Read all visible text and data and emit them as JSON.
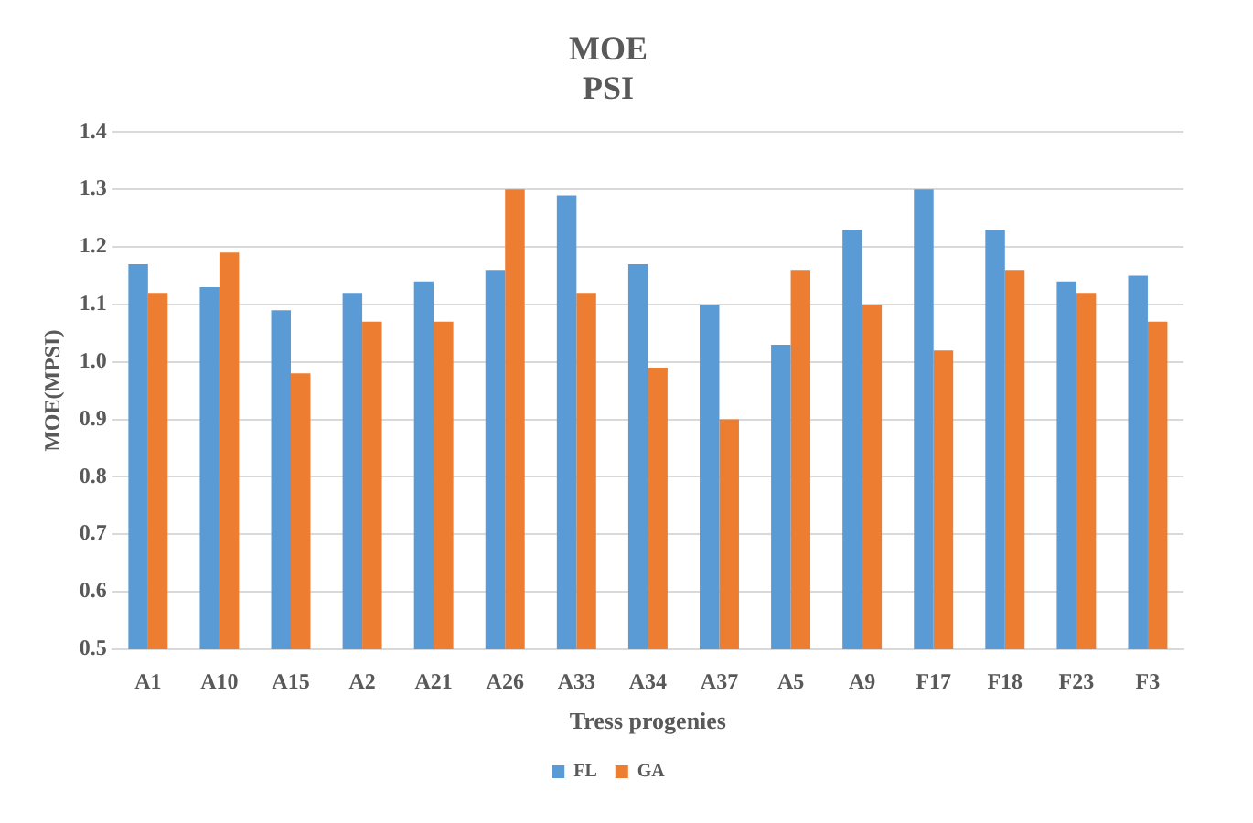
{
  "chart_data": {
    "type": "bar",
    "title": "MOE",
    "subtitle": "PSI",
    "xlabel": "Tress progenies",
    "ylabel": "MOE(MPSI)",
    "categories": [
      "A1",
      "A10",
      "A15",
      "A2",
      "A21",
      "A26",
      "A33",
      "A34",
      "A37",
      "A5",
      "A9",
      "F17",
      "F18",
      "F23",
      "F3"
    ],
    "series": [
      {
        "name": "FL",
        "color": "#5b9bd5",
        "values": [
          1.17,
          1.13,
          1.09,
          1.12,
          1.14,
          1.16,
          1.29,
          1.17,
          1.1,
          1.03,
          1.23,
          1.3,
          1.23,
          1.14,
          1.15
        ]
      },
      {
        "name": "GA",
        "color": "#ed7d31",
        "values": [
          1.12,
          1.19,
          0.98,
          1.07,
          1.07,
          1.3,
          1.12,
          0.99,
          0.9,
          1.16,
          1.1,
          1.02,
          1.16,
          1.12,
          1.07
        ]
      }
    ],
    "ylim": [
      0.5,
      1.4
    ],
    "yticks": [
      0.5,
      0.6,
      0.7,
      0.8,
      0.9,
      {
        "value": 1,
        "label": "1.0"
      },
      1.1,
      1.2,
      1.3,
      1.4
    ],
    "grid": "y",
    "legend": "bottom"
  }
}
